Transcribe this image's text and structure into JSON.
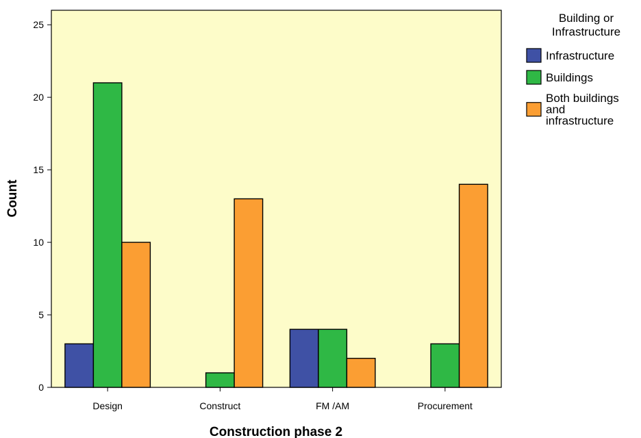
{
  "chart_data": {
    "type": "bar",
    "title": "",
    "xlabel": "Construction phase 2",
    "ylabel": "Count",
    "categories": [
      "Design",
      "Construct",
      "FM /AM",
      "Procurement"
    ],
    "series": [
      {
        "name": "Infrastructure",
        "color": "#3f51a5",
        "values": [
          3,
          0,
          4,
          0
        ]
      },
      {
        "name": "Buildings",
        "color": "#2fb845",
        "values": [
          21,
          1,
          4,
          3
        ]
      },
      {
        "name": "Both buildings and infrastructure",
        "color": "#fb9e33",
        "values": [
          10,
          13,
          2,
          14
        ]
      }
    ],
    "ylim": [
      0,
      26
    ],
    "yticks": [
      0,
      5,
      10,
      15,
      20,
      25
    ],
    "plot_background": "#fdfcc9",
    "grid": false,
    "legend": {
      "title": [
        "Building or",
        "Infrastructure"
      ],
      "placement": "right",
      "entries": [
        [
          "Infrastructure"
        ],
        [
          "Buildings"
        ],
        [
          "Both buildings",
          "and",
          "infrastructure"
        ]
      ]
    }
  }
}
